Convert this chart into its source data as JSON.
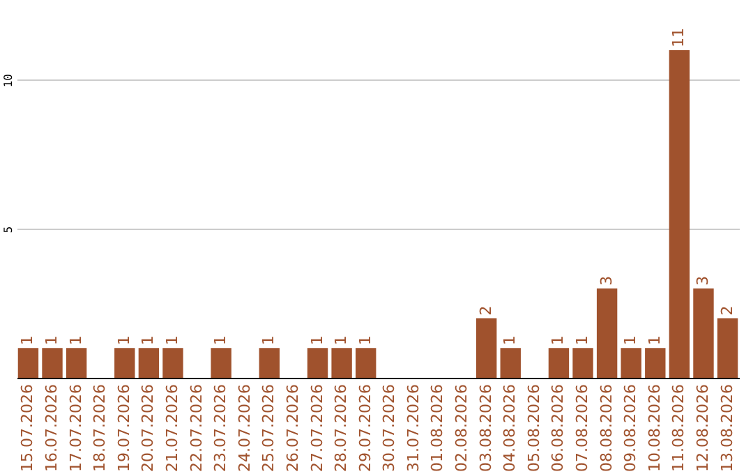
{
  "chart_data": {
    "type": "bar",
    "categories": [
      "15.07.2026",
      "16.07.2026",
      "17.07.2026",
      "18.07.2026",
      "19.07.2026",
      "20.07.2026",
      "21.07.2026",
      "22.07.2026",
      "23.07.2026",
      "24.07.2026",
      "25.07.2026",
      "26.07.2026",
      "27.07.2026",
      "28.07.2026",
      "29.07.2026",
      "30.07.2026",
      "31.07.2026",
      "01.08.2026",
      "02.08.2026",
      "03.08.2026",
      "04.08.2026",
      "05.08.2026",
      "06.08.2026",
      "07.08.2026",
      "08.08.2026",
      "09.08.2026",
      "10.08.2026",
      "11.08.2026",
      "12.08.2026",
      "13.08.2026"
    ],
    "values": [
      1,
      1,
      1,
      null,
      1,
      1,
      1,
      null,
      1,
      null,
      1,
      null,
      1,
      1,
      1,
      null,
      null,
      null,
      null,
      2,
      1,
      null,
      1,
      1,
      3,
      1,
      1,
      11,
      3,
      2
    ],
    "color": "#a0522d",
    "ylim": [
      0,
      11
    ],
    "yticks": [
      5,
      10
    ],
    "grid": "y",
    "data_labels": true
  }
}
